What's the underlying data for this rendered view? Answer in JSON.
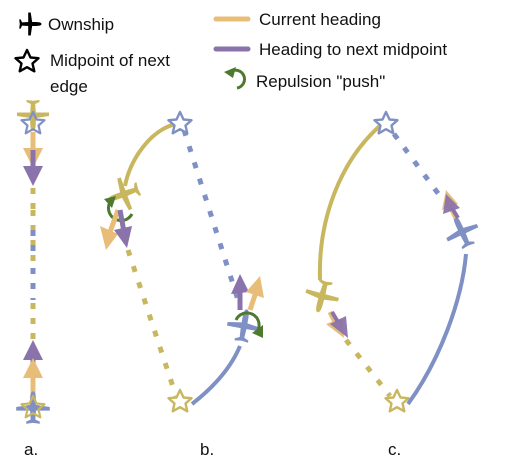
{
  "legend": {
    "ownship": "Ownship",
    "midpoint_line1": "Midpoint of next",
    "midpoint_line2": "edge",
    "current_heading": "Current heading",
    "heading_next": "Heading to next midpoint",
    "repulsion": "Repulsion \"push\""
  },
  "panels": {
    "a": "a.",
    "b": "b.",
    "c": "c."
  },
  "colors": {
    "yellow_plane": "#c9b760",
    "blue_plane": "#7f90c4",
    "current_heading": "#e8bd78",
    "heading_next": "#8a73ab",
    "repulsion": "#4e7a30",
    "star_fill": "#ffffff"
  },
  "icons": [
    "plane-icon",
    "star-icon",
    "repulsion-arrow-icon"
  ]
}
